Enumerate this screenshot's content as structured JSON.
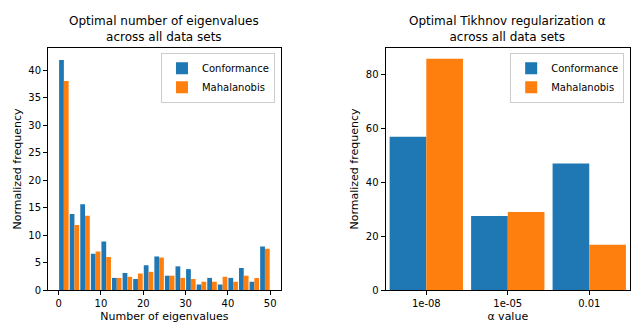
{
  "chart_data": [
    {
      "type": "histogram",
      "title": "Optimal number of eigenvalues\nacross all data sets",
      "x_label": "Number of eigenvalues",
      "y_label": "Normalized frequency",
      "bins": [
        0,
        2.5,
        5,
        7.5,
        10,
        12.5,
        15,
        17.5,
        20,
        22.5,
        25,
        27.5,
        30,
        32.5,
        35,
        37.5,
        40,
        42.5,
        45,
        47.5,
        50
      ],
      "series": [
        {
          "name": "Conformance",
          "color": "#1f77b4",
          "values": [
            41.8,
            13.8,
            15.6,
            6.6,
            8.8,
            2.2,
            3.1,
            2.0,
            4.5,
            6.1,
            2.6,
            4.3,
            3.8,
            1.0,
            2.2,
            1.0,
            2.2,
            4.0,
            1.5,
            7.9
          ]
        },
        {
          "name": "Mahalanobis",
          "color": "#ff7f0e",
          "values": [
            38.0,
            11.8,
            13.5,
            7.0,
            6.0,
            2.2,
            2.4,
            3.0,
            3.3,
            5.9,
            2.6,
            2.2,
            2.0,
            1.5,
            1.5,
            2.4,
            1.5,
            2.6,
            2.2,
            7.5
          ]
        }
      ],
      "xlim": [
        -2.5,
        52.5
      ],
      "xticks": [
        0,
        10,
        20,
        30,
        40,
        50
      ],
      "ylim": [
        0,
        44
      ],
      "yticks": [
        0,
        5,
        10,
        15,
        20,
        25,
        30,
        35,
        40
      ],
      "grid": false,
      "legend": "upper right"
    },
    {
      "type": "bar",
      "title": "Optimal Tikhnov regularization α\nacross all data sets",
      "x_label": "α value",
      "y_label": "Normalized frequency",
      "categories": [
        "1e-08",
        "1e-05",
        "0.01"
      ],
      "series": [
        {
          "name": "Conformance",
          "color": "#1f77b4",
          "values": [
            57,
            27.5,
            47
          ]
        },
        {
          "name": "Mahalanobis",
          "color": "#ff7f0e",
          "values": [
            86,
            29,
            16.8
          ]
        }
      ],
      "ylim": [
        0,
        90
      ],
      "yticks": [
        0,
        20,
        40,
        60,
        80
      ],
      "grid": false,
      "legend": "upper right"
    }
  ]
}
